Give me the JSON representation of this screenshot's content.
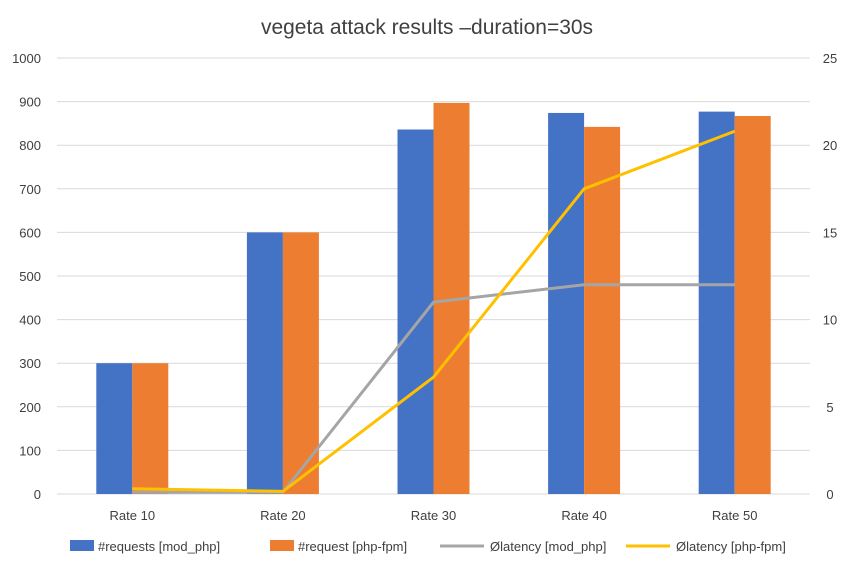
{
  "chart_data": {
    "type": "bar",
    "title": "vegeta attack results –duration=30s",
    "categories": [
      "Rate 10",
      "Rate 20",
      "Rate 30",
      "Rate 40",
      "Rate 50"
    ],
    "bar_series": [
      {
        "name": "#requests [mod_php]",
        "color": "#4472C4",
        "values": [
          300,
          600,
          836,
          874,
          877
        ]
      },
      {
        "name": "#request [php-fpm]",
        "color": "#ED7D31",
        "values": [
          300,
          600,
          897,
          842,
          867
        ]
      }
    ],
    "line_series": [
      {
        "name": "Ølatency [mod_php]",
        "color": "#A5A5A5",
        "axis": "right",
        "values": [
          0.1,
          0.1,
          11.0,
          12.0,
          12.0
        ]
      },
      {
        "name": "Ølatency [php-fpm]",
        "color": "#FFC000",
        "axis": "right",
        "values": [
          0.3,
          0.15,
          6.7,
          17.5,
          20.8
        ]
      }
    ],
    "y_left": {
      "min": 0,
      "max": 1000,
      "ticks": [
        0,
        100,
        200,
        300,
        400,
        500,
        600,
        700,
        800,
        900,
        1000
      ]
    },
    "y_right": {
      "min": 0,
      "max": 25,
      "ticks": [
        0,
        5,
        10,
        15,
        20,
        25
      ]
    },
    "grid": true,
    "legend": "bottom"
  }
}
